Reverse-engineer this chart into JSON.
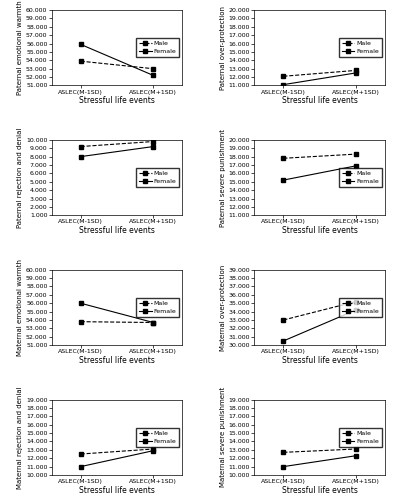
{
  "subplots": [
    {
      "ylabel": "Paternal emotional warmth",
      "ylim": [
        51000,
        60000
      ],
      "yticks": [
        51000,
        52000,
        53000,
        54000,
        55000,
        56000,
        57000,
        58000,
        59000,
        60000
      ],
      "male": [
        53900,
        53000
      ],
      "female": [
        55900,
        52200
      ]
    },
    {
      "ylabel": "Paternal over-protection",
      "ylim": [
        11000,
        20000
      ],
      "yticks": [
        11000,
        12000,
        13000,
        14000,
        15000,
        16000,
        17000,
        18000,
        19000,
        20000
      ],
      "male": [
        12100,
        12800
      ],
      "female": [
        11100,
        12500
      ]
    },
    {
      "ylabel": "Paternal rejection and denial",
      "ylim": [
        1000,
        10000
      ],
      "yticks": [
        1000,
        2000,
        3000,
        4000,
        5000,
        6000,
        7000,
        8000,
        9000,
        10000
      ],
      "male": [
        9200,
        9800
      ],
      "female": [
        8000,
        9200
      ]
    },
    {
      "ylabel": "Paternal severe punishment",
      "ylim": [
        11000,
        20000
      ],
      "yticks": [
        11000,
        12000,
        13000,
        14000,
        15000,
        16000,
        17000,
        18000,
        19000,
        20000
      ],
      "male": [
        17800,
        18300
      ],
      "female": [
        15200,
        16900
      ]
    },
    {
      "ylabel": "Maternal emotional warmth",
      "ylim": [
        51000,
        60000
      ],
      "yticks": [
        51000,
        52000,
        53000,
        54000,
        55000,
        56000,
        57000,
        58000,
        59000,
        60000
      ],
      "male": [
        53800,
        53700
      ],
      "female": [
        56000,
        53700
      ]
    },
    {
      "ylabel": "Maternal over-protection",
      "ylim": [
        30000,
        39000
      ],
      "yticks": [
        30000,
        31000,
        32000,
        33000,
        34000,
        35000,
        36000,
        37000,
        38000,
        39000
      ],
      "male": [
        33000,
        35200
      ],
      "female": [
        30500,
        34200
      ]
    },
    {
      "ylabel": "Maternal rejection and denial",
      "ylim": [
        10000,
        19000
      ],
      "yticks": [
        10000,
        11000,
        12000,
        13000,
        14000,
        15000,
        16000,
        17000,
        18000,
        19000
      ],
      "male": [
        12500,
        13100
      ],
      "female": [
        11000,
        12900
      ]
    },
    {
      "ylabel": "Maternal severe punishment",
      "ylim": [
        10000,
        19000
      ],
      "yticks": [
        10000,
        11000,
        12000,
        13000,
        14000,
        15000,
        16000,
        17000,
        18000,
        19000
      ],
      "male": [
        12700,
        13100
      ],
      "female": [
        11000,
        12300
      ]
    }
  ],
  "xtick_labels": [
    "ASLEC(M-1SD)",
    "ASLEC(M+1SD)"
  ],
  "xlabel": "Stressful life events",
  "legend_male": "Male",
  "legend_female": "Female",
  "background_color": "#ffffff",
  "plot_bg": "white",
  "fontsize_ylabel": 5,
  "fontsize_xlabel": 5.5,
  "fontsize_tick": 4.5,
  "fontsize_legend": 4.5
}
